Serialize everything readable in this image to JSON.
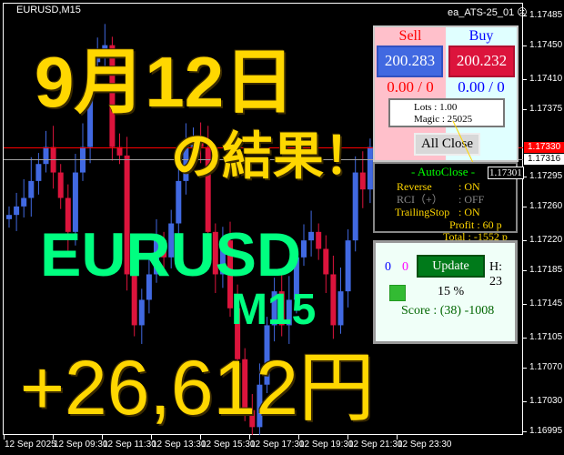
{
  "window": {
    "symbol_timeframe": "EURUSD,M15",
    "expert_name": "ea_ATS-25_01",
    "expert_icon": "sad-face-icon"
  },
  "price_axis": [
    "1.17485",
    "1.17450",
    "1.17410",
    "1.17375",
    "1.17295",
    "1.17260",
    "1.17220",
    "1.17185",
    "1.17145",
    "1.17105",
    "1.17070",
    "1.17030",
    "1.16995"
  ],
  "price_tags": {
    "ask": "1.17330",
    "bid": "1.17316",
    "autoclose": "1.17301"
  },
  "time_axis": [
    "12 Sep 2025",
    "12 Sep 09:30",
    "12 Sep 11:30",
    "12 Sep 13:30",
    "12 Sep 15:30",
    "12 Sep 17:30",
    "12 Sep 19:30",
    "12 Sep 21:30",
    "12 Sep 23:30"
  ],
  "candles_close": [
    1.1725,
    1.1726,
    1.1727,
    1.1729,
    1.1731,
    1.1733,
    1.173,
    1.1727,
    1.1723,
    1.173,
    1.1733,
    1.1743,
    1.1744,
    1.1745,
    1.1733,
    1.1732,
    1.1718,
    1.1712,
    1.1715,
    1.1718,
    1.1722,
    1.172,
    1.1724,
    1.1729,
    1.1733,
    1.1734,
    1.1733,
    1.1723,
    1.1718,
    1.1722,
    1.1714,
    1.1708,
    1.1702,
    1.17,
    1.1705,
    1.1712,
    1.1716,
    1.1712,
    1.1715,
    1.172,
    1.1722,
    1.1723,
    1.1721,
    1.1718,
    1.1712,
    1.1716,
    1.1722,
    1.173,
    1.1728,
    1.1733
  ],
  "colors": {
    "bull": "#4169e1",
    "bear": "#dc143c",
    "ask_line": "#ff0000",
    "bid_line": "#a0a0a0",
    "headline_yellow": "#ffd700",
    "headline_green": "#00ff80"
  },
  "overlay": {
    "date": "9月12日",
    "result": "の結果！",
    "pair": "EURUSD",
    "timeframe": "M15",
    "profit": "+26,612円"
  },
  "trade_panel": {
    "sell_label": "Sell",
    "buy_label": "Buy",
    "sell_price": "200.283",
    "buy_price": "200.232",
    "sell_stats": "0.00 / 0",
    "buy_stats": "0.00 / 0",
    "lots": "Lots   : 1.00",
    "magic": "Magic : 25025",
    "all_close": "All Close"
  },
  "autoclose_panel": {
    "title": "- AutoClose -",
    "reverse_label": "Reverse",
    "reverse_value": ": ON",
    "rci_label": "RCI（+）",
    "rci_value": ": OFF",
    "trailing_label": "TrailingStop",
    "trailing_value": ": ON",
    "profit": "Profit : 60 p",
    "total": "Total : -1552 p"
  },
  "score_panel": {
    "count_blue": "0",
    "count_magenta": "0",
    "update": "Update",
    "hour": "H: 23",
    "percent": "15 %",
    "score": "Score : (38) -1008"
  }
}
